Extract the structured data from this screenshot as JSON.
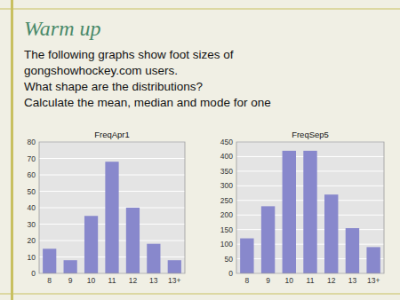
{
  "title": "Warm up",
  "text_lines": [
    "The following graphs show foot sizes of",
    "gongshowhockey.com users.",
    "What shape are the distributions?",
    "Calculate the mean, median and mode for one"
  ],
  "chart_data": [
    {
      "type": "bar",
      "title": "FreqApr1",
      "categories": [
        "8",
        "9",
        "10",
        "11",
        "12",
        "13",
        "13+"
      ],
      "values": [
        15,
        8,
        35,
        68,
        40,
        18,
        8
      ],
      "color": "#8888cc",
      "ylim": [
        0,
        80
      ],
      "yticks": [
        0,
        10,
        20,
        30,
        40,
        50,
        60,
        70,
        80
      ],
      "grid": true
    },
    {
      "type": "bar",
      "title": "FreqSep5",
      "categories": [
        "8",
        "9",
        "10",
        "11",
        "12",
        "13",
        "13+"
      ],
      "values": [
        120,
        230,
        420,
        420,
        270,
        155,
        90
      ],
      "color": "#8888cc",
      "ylim": [
        0,
        450
      ],
      "yticks": [
        0,
        50,
        100,
        150,
        200,
        250,
        300,
        350,
        400,
        450
      ],
      "grid": true
    }
  ]
}
